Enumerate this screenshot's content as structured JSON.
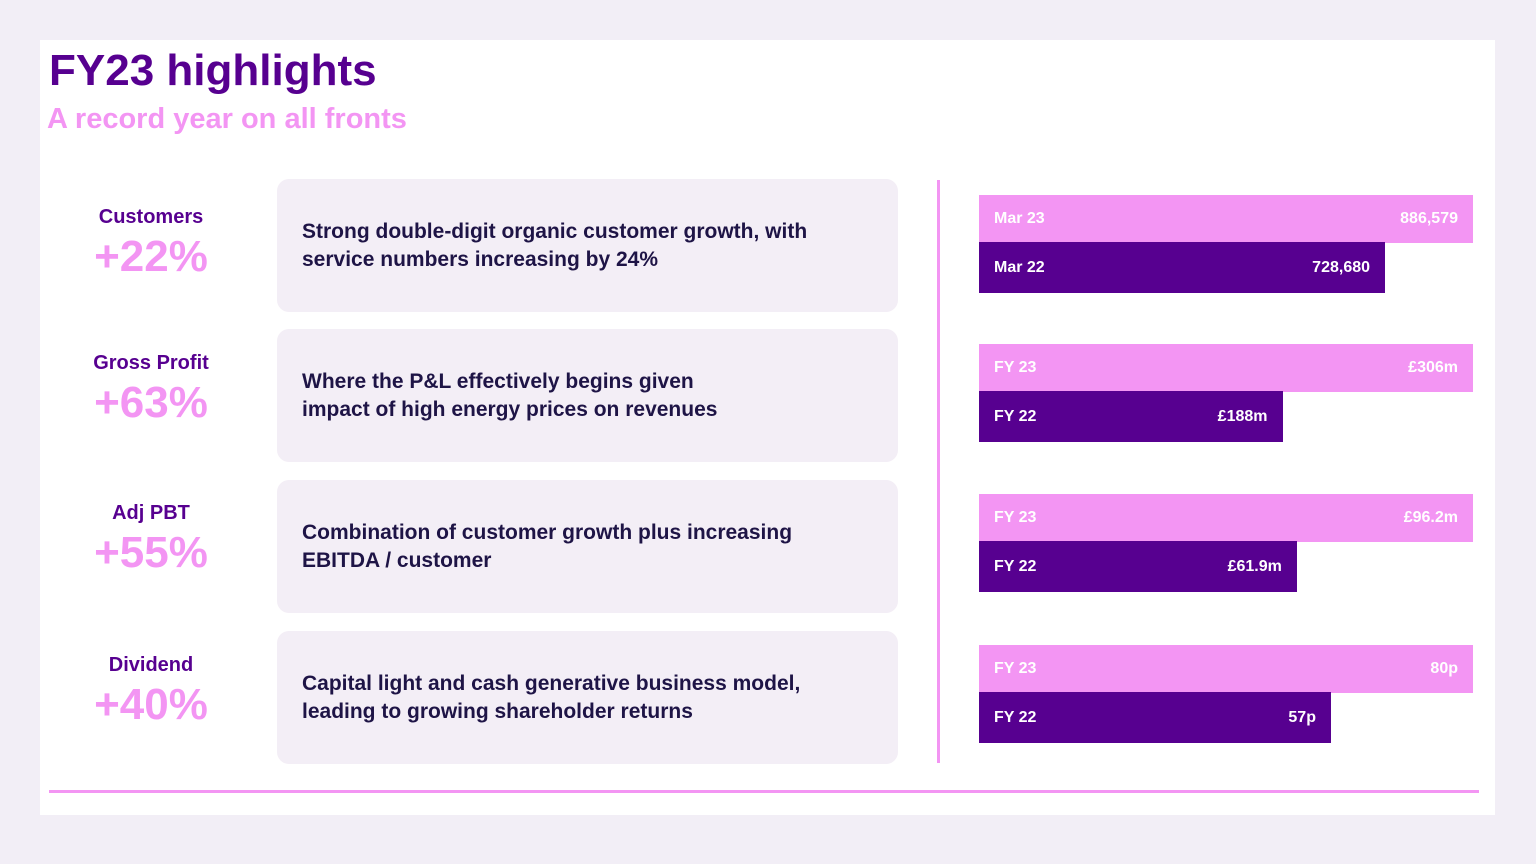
{
  "header": {
    "title": "FY23 highlights",
    "subtitle": "A record year on all fronts"
  },
  "colors": {
    "primary": "#570090",
    "accent": "#f395f3",
    "card": "#f3eef6"
  },
  "rows": [
    {
      "metric": "Customers",
      "change": "+22%",
      "text": "Strong double-digit organic customer growth, with service numbers increasing by 24%"
    },
    {
      "metric": "Gross Profit",
      "change": "+63%",
      "text": "Where the P&L effectively begins given impact of high energy prices on revenues"
    },
    {
      "metric": "Adj PBT",
      "change": "+55%",
      "text": "Combination of customer growth plus increasing EBITDA / customer"
    },
    {
      "metric": "Dividend",
      "change": "+40%",
      "text": "Capital light and cash generative business model, leading to growing shareholder returns"
    }
  ],
  "chart_data": [
    {
      "type": "bar",
      "orientation": "horizontal",
      "categories": [
        "Mar 23",
        "Mar 22"
      ],
      "values": [
        886579,
        728680
      ],
      "labels": [
        "886,579",
        "728,680"
      ]
    },
    {
      "type": "bar",
      "orientation": "horizontal",
      "categories": [
        "FY 23",
        "FY 22"
      ],
      "values": [
        306,
        188
      ],
      "labels": [
        "£306m",
        "£188m"
      ],
      "unit": "£m"
    },
    {
      "type": "bar",
      "orientation": "horizontal",
      "categories": [
        "FY 23",
        "FY 22"
      ],
      "values": [
        96.2,
        61.9
      ],
      "labels": [
        "£96.2m",
        "£61.9m"
      ],
      "unit": "£m"
    },
    {
      "type": "bar",
      "orientation": "horizontal",
      "categories": [
        "FY 23",
        "FY 22"
      ],
      "values": [
        80,
        57
      ],
      "labels": [
        "80p",
        "57p"
      ],
      "unit": "p"
    }
  ]
}
